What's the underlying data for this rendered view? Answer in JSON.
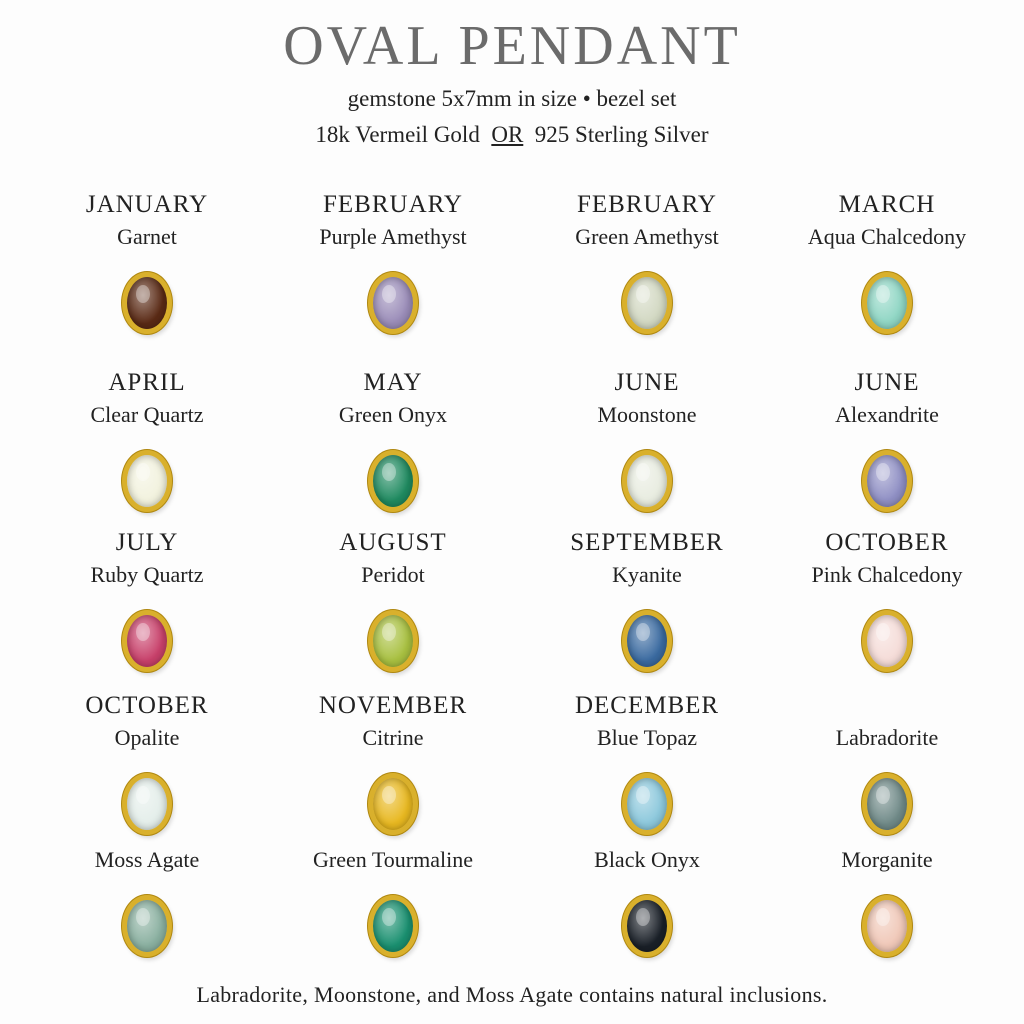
{
  "title": "OVAL PENDANT",
  "subtitle_line1": "gemstone 5x7mm in size • bezel set",
  "subtitle_line2": {
    "left": "18k Vermeil Gold",
    "or": "OR",
    "right": "925 Sterling Silver"
  },
  "rows": [
    [
      {
        "month": "JANUARY",
        "stone": "Garnet",
        "color": "#5a2a15"
      },
      {
        "month": "FEBRUARY",
        "stone": "Purple Amethyst",
        "color": "#9a8cb8"
      },
      {
        "month": "FEBRUARY",
        "stone": "Green Amethyst",
        "color": "#d2d8c2"
      },
      {
        "month": "MARCH",
        "stone": "Aqua Chalcedony",
        "color": "#8fd6c4"
      }
    ],
    [
      {
        "month": "APRIL",
        "stone": "Clear Quartz",
        "color": "#f2f2de"
      },
      {
        "month": "MAY",
        "stone": "Green Onyx",
        "color": "#1f8a60"
      },
      {
        "month": "JUNE",
        "stone": "Moonstone",
        "color": "#e8ece0"
      },
      {
        "month": "JUNE",
        "stone": "Alexandrite",
        "color": "#8f8fc4"
      }
    ],
    [
      {
        "month": "JULY",
        "stone": "Ruby Quartz",
        "color": "#c8406a"
      },
      {
        "month": "AUGUST",
        "stone": "Peridot",
        "color": "#a8c040"
      },
      {
        "month": "SEPTEMBER",
        "stone": "Kyanite",
        "color": "#3a6aa0"
      },
      {
        "month": "OCTOBER",
        "stone": "Pink Chalcedony",
        "color": "#f5dcd8"
      }
    ],
    [
      {
        "month": "OCTOBER",
        "stone": "Opalite",
        "color": "#e4eeea"
      },
      {
        "month": "NOVEMBER",
        "stone": "Citrine",
        "color": "#e8b820"
      },
      {
        "month": "DECEMBER",
        "stone": "Blue Topaz",
        "color": "#8cc8dc"
      },
      {
        "month": "",
        "stone": "Labradorite",
        "color": "#708a88"
      }
    ],
    [
      {
        "month": "",
        "stone": "Moss Agate",
        "color": "#8ab0a0"
      },
      {
        "month": "",
        "stone": "Green Tourmaline",
        "color": "#1a9070"
      },
      {
        "month": "",
        "stone": "Black Onyx",
        "color": "#1a2028"
      },
      {
        "month": "",
        "stone": "Morganite",
        "color": "#f0c8b8"
      }
    ]
  ],
  "footer": "Labradorite, Moonstone, and Moss Agate contains natural inclusions."
}
